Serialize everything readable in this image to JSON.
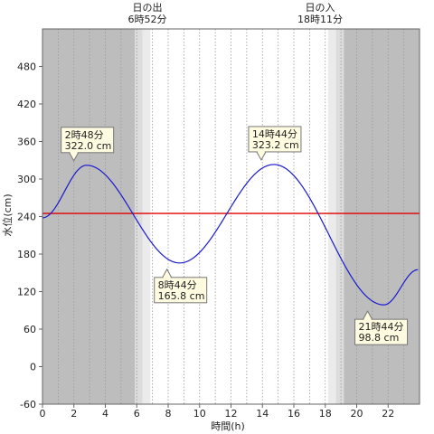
{
  "chart_data": {
    "type": "line",
    "xlabel": "時間(h)",
    "ylabel": "水位(cm)",
    "xlim": [
      0,
      24
    ],
    "ylim": [
      -60,
      540
    ],
    "x_ticks": [
      0,
      2,
      4,
      6,
      8,
      10,
      12,
      14,
      16,
      18,
      20,
      22
    ],
    "y_ticks": [
      -60,
      0,
      60,
      120,
      180,
      240,
      300,
      360,
      420,
      480
    ],
    "grid": "vertical dotted every 1 h",
    "reference_level": 245,
    "line_color": "#1a1ad0",
    "reference_color": "#e00000",
    "night_color": "#bdbdbd",
    "twilight_color": "#dcdcdc",
    "sun": {
      "sunrise_title": "日の出",
      "sunrise_time": "6時52分",
      "sunrise_hour": 6.87,
      "sunset_title": "日の入",
      "sunset_time": "18時11分",
      "sunset_hour": 18.18
    },
    "extremes": [
      {
        "kind": "high",
        "time": "2時48分",
        "level": "322.0 cm",
        "x": 2.8,
        "y": 322.0
      },
      {
        "kind": "low",
        "time": "8時44分",
        "level": "165.8 cm",
        "x": 8.73,
        "y": 165.8
      },
      {
        "kind": "high",
        "time": "14時44分",
        "level": "323.2 cm",
        "x": 14.73,
        "y": 323.2
      },
      {
        "kind": "low",
        "time": "21時44分",
        "level": "98.8 cm",
        "x": 21.73,
        "y": 98.8
      }
    ],
    "series": [
      {
        "values": [
          {
            "x": 0.0,
            "y": 238.0
          },
          {
            "x": 2.8,
            "y": 322.0
          },
          {
            "x": 8.73,
            "y": 165.8
          },
          {
            "x": 14.73,
            "y": 323.2
          },
          {
            "x": 21.73,
            "y": 98.8
          },
          {
            "x": 23.9,
            "y": 155.0
          }
        ]
      }
    ]
  }
}
